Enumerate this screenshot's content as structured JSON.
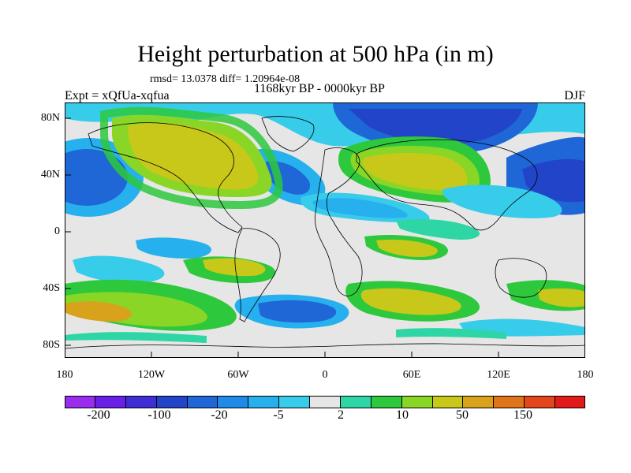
{
  "title": "Height perturbation at 500 hPa (in m)",
  "stats": "rmsd= 13.0378 diff= 1.20964e-08",
  "experiment": "Expt = xQfUa-xqfua",
  "time_range": "1168kyr BP - 0000kyr BP",
  "season": "DJF",
  "lat_labels": [
    "80N",
    "40N",
    "0",
    "40S",
    "80S"
  ],
  "lon_labels": [
    "180",
    "120W",
    "60W",
    "0",
    "60E",
    "120E",
    "180"
  ],
  "colorbar": {
    "colors": [
      "#9a2cf0",
      "#6a1fe6",
      "#3f2ed6",
      "#2244c8",
      "#1f66d6",
      "#1f8ae8",
      "#26b0ee",
      "#38cceb",
      "#e6e6e6",
      "#2ed6a6",
      "#2ec83c",
      "#8ad626",
      "#c8c81a",
      "#d8a21a",
      "#e0741a",
      "#e2461a",
      "#e21a1a"
    ],
    "labels": [
      "-200",
      "-100",
      "-20",
      "-5",
      "2",
      "10",
      "50",
      "150"
    ]
  },
  "icons": {
    "map": "world-map-contour"
  }
}
